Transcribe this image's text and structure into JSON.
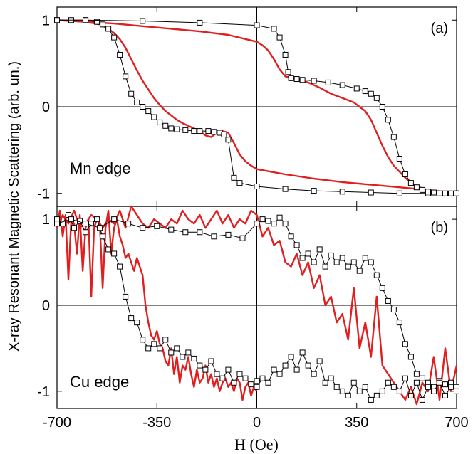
{
  "figure": {
    "ylabel": "X-ray Resonant Magnetic Scattering (arb. un.)",
    "xlabel": "H (Oe)"
  },
  "colors": {
    "line": "#e02020",
    "markers": "#000000"
  },
  "chart_data": [
    {
      "type": "line",
      "panel_tag": "(a)",
      "edge_label": "Mn edge",
      "xlim": [
        -700,
        700
      ],
      "ylim": [
        -1.15,
        1.15
      ],
      "x_ticks": [
        -700,
        -350,
        0,
        350,
        700
      ],
      "x_tick_labels": [
        "-700",
        "-350",
        "0",
        "350",
        "700"
      ],
      "y_ticks": [
        1,
        0,
        -1
      ],
      "y_tick_labels": [
        "1",
        "0",
        "-1"
      ],
      "series": [
        {
          "kind": "markers",
          "x": [
            -700,
            -650,
            -600,
            -560,
            -540,
            -520,
            -500,
            -480,
            -460,
            -440,
            -420,
            -400,
            -380,
            -360,
            -340,
            -320,
            -300,
            -280,
            -250,
            -220,
            -200,
            -170,
            -150,
            -130,
            -115,
            -100,
            -80,
            -60,
            0,
            100,
            200,
            300,
            400,
            500,
            600,
            700
          ],
          "y": [
            1.0,
            1.0,
            1.0,
            0.98,
            0.95,
            0.9,
            0.8,
            0.6,
            0.35,
            0.15,
            0.05,
            0.0,
            -0.05,
            -0.12,
            -0.18,
            -0.22,
            -0.25,
            -0.26,
            -0.27,
            -0.28,
            -0.28,
            -0.28,
            -0.29,
            -0.3,
            -0.32,
            -0.38,
            -0.82,
            -0.88,
            -0.92,
            -0.95,
            -0.97,
            -0.98,
            -0.99,
            -1.0,
            -1.0,
            -1.0
          ]
        },
        {
          "kind": "markers",
          "x": [
            -700,
            -600,
            -400,
            -200,
            0,
            60,
            80,
            100,
            110,
            120,
            140,
            160,
            200,
            250,
            300,
            350,
            380,
            400,
            420,
            440,
            460,
            480,
            500,
            520,
            540,
            560,
            580,
            600,
            620,
            640,
            660,
            680,
            700
          ],
          "y": [
            1.0,
            1.0,
            0.99,
            0.97,
            0.94,
            0.9,
            0.8,
            0.6,
            0.4,
            0.33,
            0.32,
            0.31,
            0.3,
            0.28,
            0.25,
            0.21,
            0.18,
            0.15,
            0.1,
            0.0,
            -0.15,
            -0.35,
            -0.6,
            -0.78,
            -0.88,
            -0.93,
            -0.96,
            -0.98,
            -0.99,
            -1.0,
            -1.0,
            -1.0,
            -1.0
          ]
        },
        {
          "kind": "line",
          "x": [
            -700,
            -600,
            -550,
            -520,
            -500,
            -480,
            -460,
            -440,
            -420,
            -400,
            -380,
            -360,
            -340,
            -320,
            -300,
            -280,
            -260,
            -240,
            -220,
            -200,
            -180,
            -160,
            -140,
            -120,
            -100,
            -80,
            -60,
            -40,
            -20,
            0,
            100,
            200,
            300,
            400,
            500,
            600,
            700
          ],
          "y": [
            1.0,
            0.98,
            0.95,
            0.9,
            0.85,
            0.78,
            0.68,
            0.55,
            0.42,
            0.3,
            0.2,
            0.1,
            0.02,
            -0.05,
            -0.1,
            -0.15,
            -0.19,
            -0.22,
            -0.25,
            -0.28,
            -0.33,
            -0.35,
            -0.3,
            -0.28,
            -0.3,
            -0.42,
            -0.55,
            -0.63,
            -0.68,
            -0.72,
            -0.78,
            -0.83,
            -0.87,
            -0.9,
            -0.93,
            -0.96,
            -1.0
          ]
        },
        {
          "kind": "line",
          "x": [
            -700,
            -600,
            -500,
            -400,
            -300,
            -200,
            -100,
            0,
            20,
            40,
            60,
            80,
            100,
            140,
            180,
            220,
            260,
            300,
            340,
            380,
            400,
            420,
            440,
            460,
            480,
            500,
            520,
            540,
            560,
            600,
            650,
            700
          ],
          "y": [
            1.0,
            0.98,
            0.96,
            0.93,
            0.9,
            0.87,
            0.83,
            0.75,
            0.71,
            0.65,
            0.55,
            0.43,
            0.35,
            0.32,
            0.28,
            0.22,
            0.15,
            0.1,
            0.05,
            -0.05,
            -0.15,
            -0.3,
            -0.45,
            -0.58,
            -0.68,
            -0.75,
            -0.82,
            -0.88,
            -0.92,
            -0.96,
            -0.99,
            -1.0
          ]
        }
      ]
    },
    {
      "type": "line",
      "panel_tag": "(b)",
      "edge_label": "Cu edge",
      "xlim": [
        -700,
        700
      ],
      "ylim": [
        -1.2,
        1.15
      ],
      "x_ticks": [
        -700,
        -350,
        0,
        350,
        700
      ],
      "x_tick_labels": [
        "-700",
        "-350",
        "0",
        "350",
        "700"
      ],
      "y_ticks": [
        1,
        0,
        -1
      ],
      "y_tick_labels": [
        "1",
        "0",
        "-1"
      ],
      "series": [
        {
          "kind": "markers",
          "x": [
            -700,
            -680,
            -660,
            -640,
            -620,
            -600,
            -580,
            -560,
            -540,
            -520,
            -500,
            -480,
            -460,
            -440,
            -420,
            -400,
            -380,
            -360,
            -340,
            -320,
            -300,
            -280,
            -260,
            -240,
            -220,
            -200,
            -180,
            -160,
            -140,
            -120,
            -100,
            -80,
            -60,
            -40,
            -20,
            0
          ],
          "y": [
            1.0,
            0.95,
            1.05,
            0.9,
            0.98,
            0.85,
            0.95,
            1.0,
            0.8,
            0.65,
            0.6,
            0.45,
            0.1,
            -0.15,
            -0.2,
            -0.4,
            -0.5,
            -0.45,
            -0.5,
            -0.4,
            -0.55,
            -0.5,
            -0.6,
            -0.55,
            -0.62,
            -0.7,
            -0.75,
            -0.65,
            -0.8,
            -0.85,
            -0.75,
            -0.9,
            -0.8,
            -0.85,
            -0.92,
            -0.88
          ]
        },
        {
          "kind": "markers",
          "x": [
            -700,
            -650,
            -600,
            -550,
            -500,
            -450,
            -400,
            -350,
            -300,
            -250,
            -200,
            -150,
            -100,
            -50,
            0,
            20,
            40,
            60,
            80,
            100,
            120,
            140,
            160,
            180,
            200,
            220,
            240,
            260,
            280,
            300,
            320,
            340,
            360,
            380,
            400,
            420,
            440,
            460,
            480,
            500,
            520,
            540,
            560,
            580,
            600,
            620,
            640,
            660,
            680,
            700
          ],
          "y": [
            0.95,
            1.0,
            0.95,
            0.9,
            1.0,
            0.95,
            0.9,
            0.92,
            0.88,
            0.85,
            0.85,
            0.8,
            0.82,
            0.78,
            0.95,
            1.0,
            0.98,
            0.95,
            1.02,
            0.95,
            0.8,
            0.7,
            0.55,
            0.6,
            0.5,
            0.65,
            0.45,
            0.58,
            0.5,
            0.55,
            0.45,
            0.5,
            0.4,
            0.55,
            0.5,
            0.35,
            0.2,
            0.05,
            -0.05,
            -0.2,
            -0.45,
            -0.6,
            -0.8,
            -0.85,
            -0.9,
            -0.95,
            -0.88,
            -0.92,
            -0.9,
            -0.95
          ]
        },
        {
          "kind": "markers",
          "x": [
            0,
            20,
            40,
            60,
            80,
            100,
            120,
            140,
            160,
            180,
            200,
            220,
            240,
            260,
            280,
            300,
            320,
            340,
            360,
            380,
            400,
            420,
            440,
            460,
            480,
            500,
            520,
            540,
            560,
            580,
            600,
            620,
            640,
            660,
            680,
            700
          ],
          "y": [
            -0.95,
            -0.85,
            -0.9,
            -0.75,
            -0.8,
            -0.7,
            -0.6,
            -0.75,
            -0.55,
            -0.7,
            -0.8,
            -0.65,
            -0.9,
            -0.85,
            -0.95,
            -1.0,
            -1.05,
            -0.9,
            -1.0,
            -0.95,
            -1.1,
            -1.05,
            -1.0,
            -0.9,
            -0.95,
            -1.0,
            -0.85,
            -1.05,
            -0.9,
            -1.1,
            -0.95,
            -1.0,
            -0.9,
            -1.05,
            -0.95,
            -1.0
          ]
        },
        {
          "kind": "line",
          "x": [
            -700,
            -690,
            -680,
            -670,
            -660,
            -650,
            -640,
            -630,
            -620,
            -610,
            -600,
            -590,
            -580,
            -570,
            -560,
            -550,
            -540,
            -530,
            -520,
            -510,
            -500,
            -490,
            -480,
            -470,
            -460,
            -450,
            -440,
            -430,
            -420,
            -410,
            -400,
            -390,
            -380,
            -370,
            -360,
            -350,
            -340,
            -330,
            -320,
            -310,
            -300,
            -290,
            -280,
            -270,
            -260,
            -250,
            -240,
            -230,
            -220,
            -210,
            -200,
            -190,
            -180,
            -170,
            -160,
            -150,
            -140,
            -130,
            -120,
            -110,
            -100,
            -90,
            -80,
            -70,
            -60,
            -50,
            -40,
            -30,
            -20,
            -10,
            0
          ],
          "y": [
            0.9,
            1.1,
            0.8,
            1.05,
            0.3,
            1.0,
            0.95,
            0.6,
            1.05,
            0.4,
            0.9,
            1.0,
            0.1,
            0.9,
            1.0,
            0.95,
            0.2,
            0.9,
            1.1,
            0.6,
            0.9,
            1.0,
            0.8,
            0.7,
            0.55,
            0.6,
            0.5,
            0.4,
            0.55,
            0.45,
            0.35,
            0.0,
            -0.2,
            -0.35,
            -0.4,
            -0.3,
            -0.45,
            -0.5,
            -0.65,
            -0.7,
            -0.5,
            -0.8,
            -0.6,
            -0.9,
            -0.7,
            -0.75,
            -0.6,
            -0.8,
            -0.95,
            -0.75,
            -0.9,
            -0.85,
            -0.7,
            -0.9,
            -0.8,
            -0.95,
            -0.85,
            -1.0,
            -0.9,
            -0.85,
            -0.95,
            -0.9,
            -1.0,
            -0.85,
            -0.9,
            -1.1,
            -0.95,
            -0.9,
            -1.05,
            -0.95,
            -1.0
          ]
        },
        {
          "kind": "line",
          "x": [
            -700,
            -680,
            -660,
            -640,
            -620,
            -600,
            -580,
            -560,
            -540,
            -520,
            -500,
            -480,
            -460,
            -440,
            -420,
            -400,
            -380,
            -360,
            -340,
            -320,
            -300,
            -280,
            -260,
            -240,
            -220,
            -200,
            -180,
            -160,
            -140,
            -120,
            -100,
            -80,
            -60,
            -40,
            -20,
            0,
            20,
            40,
            60,
            80,
            100,
            120,
            140,
            160,
            180,
            200,
            220,
            240,
            260,
            280,
            300,
            320,
            340,
            360,
            380,
            400,
            420,
            440,
            460,
            480,
            500,
            520,
            540,
            560,
            580,
            600,
            620,
            640,
            660,
            680,
            700
          ],
          "y": [
            0.9,
            1.05,
            0.95,
            1.1,
            0.9,
            0.95,
            1.05,
            1.0,
            0.9,
            1.0,
            0.95,
            1.1,
            0.9,
            1.15,
            1.05,
            0.95,
            0.9,
            1.0,
            0.95,
            0.9,
            1.0,
            0.95,
            1.1,
            1.0,
            0.95,
            1.05,
            0.9,
            1.0,
            1.1,
            0.95,
            1.05,
            0.9,
            1.0,
            0.95,
            1.1,
            1.05,
            0.8,
            0.9,
            0.7,
            0.75,
            0.5,
            0.45,
            0.6,
            0.35,
            0.5,
            0.2,
            0.35,
            0.0,
            0.1,
            -0.2,
            -0.1,
            -0.4,
            0.2,
            -0.5,
            -0.2,
            -0.6,
            0.1,
            -0.7,
            -0.8,
            -0.9,
            -1.0,
            -1.1,
            -0.95,
            -1.15,
            -0.9,
            -1.0,
            -0.6,
            -1.1,
            -0.5,
            -1.0,
            -0.7
          ]
        }
      ]
    }
  ]
}
